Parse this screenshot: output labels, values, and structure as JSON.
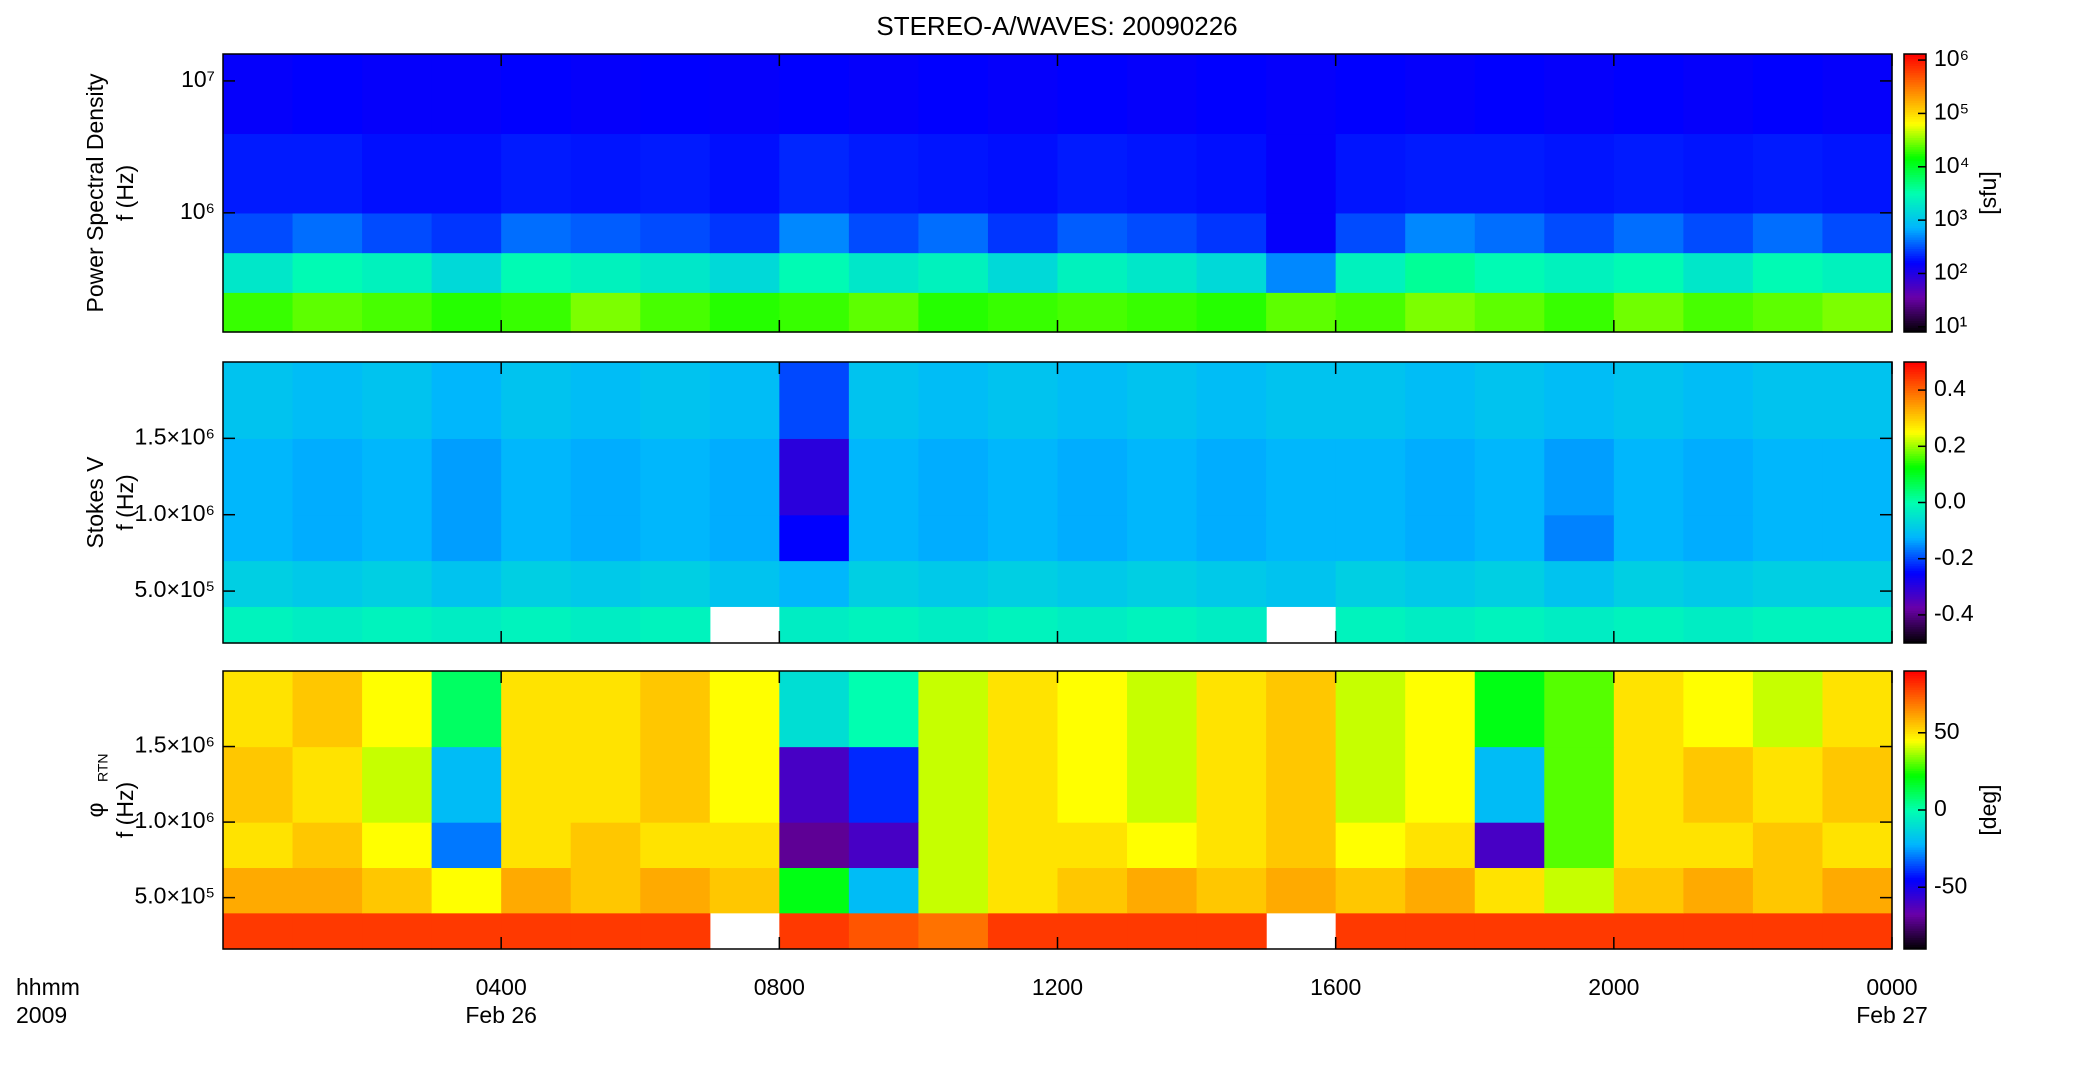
{
  "chart_data": [
    {
      "type": "heatmap",
      "title": "STEREO-A/WAVES: 20090226",
      "ylabel": [
        "Power Spectral Density",
        "f (Hz)"
      ],
      "xlim": [
        0,
        24
      ],
      "ylim": [
        125000,
        16000000
      ],
      "ylog": true,
      "yticks": [
        {
          "value": 1000000,
          "label": "10⁶"
        },
        {
          "value": 10000000,
          "label": "10⁷"
        }
      ],
      "x_bins": [
        0,
        1,
        2,
        3,
        4,
        5,
        6,
        7,
        8,
        9,
        10,
        11,
        12,
        13,
        14,
        15,
        16,
        17,
        18,
        19,
        20,
        21,
        22,
        23,
        24
      ],
      "y_bins": [
        125000,
        250000,
        500000,
        1000000,
        4000000,
        16000000
      ],
      "z": [
        [
          20000,
          25000,
          22000,
          18000,
          20000,
          30000,
          22000,
          18000,
          20000,
          25000,
          18000,
          20000,
          22000,
          20000,
          18000,
          25000,
          22000,
          30000,
          25000,
          20000,
          28000,
          22000,
          25000,
          30000
        ],
        [
          2000,
          3000,
          2500,
          1500,
          3000,
          2500,
          2000,
          1500,
          3000,
          2000,
          2500,
          1500,
          2500,
          2000,
          1500,
          500,
          2500,
          4000,
          3000,
          2500,
          3000,
          2000,
          3000,
          2500
        ],
        [
          300,
          400,
          300,
          250,
          400,
          350,
          300,
          250,
          500,
          300,
          400,
          250,
          350,
          300,
          250,
          150,
          300,
          500,
          400,
          300,
          400,
          300,
          400,
          300
        ],
        [
          200,
          200,
          180,
          180,
          200,
          190,
          200,
          180,
          220,
          200,
          190,
          180,
          200,
          190,
          180,
          150,
          190,
          200,
          200,
          190,
          200,
          190,
          200,
          190
        ],
        [
          150,
          160,
          150,
          150,
          160,
          150,
          160,
          150,
          160,
          150,
          160,
          150,
          160,
          150,
          160,
          150,
          160,
          150,
          160,
          150,
          160,
          150,
          160,
          150
        ]
      ],
      "zlim": [
        8,
        1300000
      ],
      "zlog": true,
      "zlabel": "[sfu]",
      "zticks": [
        {
          "value": 10,
          "label": "10¹"
        },
        {
          "value": 100,
          "label": "10²"
        },
        {
          "value": 1000,
          "label": "10³"
        },
        {
          "value": 10000,
          "label": "10⁴"
        },
        {
          "value": 100000,
          "label": "10⁵"
        },
        {
          "value": 1000000,
          "label": "10⁶"
        }
      ],
      "colormap": [
        "#000000",
        "#6a00a8",
        "#0000ff",
        "#00b4ff",
        "#00ffb0",
        "#00ff00",
        "#ffff00",
        "#ff8000",
        "#ff0000"
      ]
    },
    {
      "type": "heatmap",
      "ylabel": [
        "Stokes V",
        "f (Hz)"
      ],
      "xlim": [
        0,
        24
      ],
      "ylim": [
        160000,
        2000000
      ],
      "yticks": [
        {
          "value": 500000,
          "label": "5.0×10⁵"
        },
        {
          "value": 1000000,
          "label": "1.0×10⁶"
        },
        {
          "value": 1500000,
          "label": "1.5×10⁶"
        }
      ],
      "x_bins": [
        0,
        1,
        2,
        3,
        4,
        5,
        6,
        7,
        8,
        9,
        10,
        11,
        12,
        13,
        14,
        15,
        16,
        17,
        18,
        19,
        20,
        21,
        22,
        23,
        24
      ],
      "y_bins": [
        160000,
        400000,
        700000,
        1000000,
        1500000,
        2000000
      ],
      "z": [
        [
          -0.02,
          -0.03,
          -0.02,
          -0.03,
          -0.02,
          -0.03,
          -0.02,
          null,
          -0.03,
          -0.02,
          -0.03,
          -0.02,
          -0.03,
          -0.02,
          -0.03,
          null,
          -0.02,
          -0.03,
          -0.02,
          -0.03,
          -0.02,
          -0.03,
          -0.02,
          -0.02
        ],
        [
          -0.08,
          -0.09,
          -0.08,
          -0.1,
          -0.08,
          -0.09,
          -0.08,
          -0.1,
          -0.12,
          -0.08,
          -0.09,
          -0.08,
          -0.09,
          -0.08,
          -0.09,
          -0.1,
          -0.08,
          -0.09,
          -0.08,
          -0.1,
          -0.08,
          -0.09,
          -0.08,
          -0.08
        ],
        [
          -0.12,
          -0.13,
          -0.12,
          -0.14,
          -0.12,
          -0.13,
          -0.12,
          -0.13,
          -0.25,
          -0.12,
          -0.13,
          -0.12,
          -0.13,
          -0.12,
          -0.13,
          -0.12,
          -0.12,
          -0.13,
          -0.12,
          -0.16,
          -0.12,
          -0.13,
          -0.12,
          -0.12
        ],
        [
          -0.12,
          -0.13,
          -0.12,
          -0.14,
          -0.12,
          -0.13,
          -0.12,
          -0.13,
          -0.3,
          -0.12,
          -0.13,
          -0.12,
          -0.13,
          -0.12,
          -0.13,
          -0.12,
          -0.12,
          -0.13,
          -0.12,
          -0.14,
          -0.12,
          -0.13,
          -0.12,
          -0.12
        ],
        [
          -0.1,
          -0.11,
          -0.1,
          -0.12,
          -0.1,
          -0.11,
          -0.1,
          -0.11,
          -0.2,
          -0.1,
          -0.11,
          -0.1,
          -0.11,
          -0.1,
          -0.11,
          -0.1,
          -0.1,
          -0.11,
          -0.1,
          -0.11,
          -0.1,
          -0.11,
          -0.1,
          -0.1
        ]
      ],
      "zlim": [
        -0.5,
        0.5
      ],
      "zticks": [
        -0.4,
        -0.2,
        {
          "value": 0,
          "label": "0.0"
        },
        0.2,
        0.4
      ],
      "colormap": [
        "#000000",
        "#6a00a8",
        "#0000ff",
        "#00b4ff",
        "#00ffb0",
        "#00ff00",
        "#ffff00",
        "#ff8000",
        "#ff0000"
      ]
    },
    {
      "type": "heatmap",
      "ylabel": [
        "φ",
        "f (Hz)"
      ],
      "ylabel_subscript": "RTN",
      "xlim": [
        0,
        24
      ],
      "ylim": [
        160000,
        2000000
      ],
      "xticks": [
        {
          "value": 4,
          "label": "0400"
        },
        {
          "value": 8,
          "label": "0800"
        },
        {
          "value": 12,
          "label": "1200"
        },
        {
          "value": 16,
          "label": "1600"
        },
        {
          "value": 20,
          "label": "2000"
        },
        {
          "value": 24,
          "label": "0000"
        }
      ],
      "xtick_dates": [
        {
          "value": 4,
          "label": "Feb 26"
        },
        {
          "value": 24,
          "label": "Feb 27"
        }
      ],
      "xlabel": [
        "hhmm",
        "2009"
      ],
      "yticks": [
        {
          "value": 500000,
          "label": "5.0×10⁵"
        },
        {
          "value": 1000000,
          "label": "1.0×10⁶"
        },
        {
          "value": 1500000,
          "label": "1.5×10⁶"
        }
      ],
      "x_bins": [
        0,
        1,
        2,
        3,
        4,
        5,
        6,
        7,
        8,
        9,
        10,
        11,
        12,
        13,
        14,
        15,
        16,
        17,
        18,
        19,
        20,
        21,
        22,
        23,
        24
      ],
      "y_bins": [
        160000,
        400000,
        700000,
        1000000,
        1500000,
        2000000
      ],
      "z": [
        [
          80,
          80,
          80,
          80,
          80,
          80,
          80,
          null,
          80,
          75,
          70,
          80,
          80,
          80,
          80,
          null,
          80,
          80,
          80,
          80,
          80,
          80,
          80,
          80
        ],
        [
          60,
          60,
          55,
          45,
          60,
          55,
          60,
          55,
          20,
          -20,
          40,
          50,
          55,
          60,
          55,
          60,
          55,
          60,
          50,
          40,
          55,
          60,
          55,
          60
        ],
        [
          50,
          55,
          45,
          -30,
          50,
          55,
          50,
          50,
          -70,
          -60,
          40,
          50,
          50,
          45,
          50,
          55,
          45,
          50,
          -60,
          30,
          50,
          50,
          55,
          50
        ],
        [
          55,
          50,
          40,
          -20,
          50,
          50,
          55,
          45,
          -60,
          -40,
          40,
          50,
          45,
          40,
          50,
          55,
          40,
          45,
          -20,
          30,
          50,
          55,
          50,
          55
        ],
        [
          50,
          55,
          45,
          10,
          50,
          50,
          55,
          45,
          -10,
          0,
          40,
          50,
          45,
          40,
          50,
          55,
          40,
          45,
          20,
          30,
          50,
          45,
          40,
          50
        ]
      ],
      "zlim": [
        -90,
        90
      ],
      "zlabel": "[deg]",
      "zticks": [
        -50,
        0,
        50
      ],
      "colormap": [
        "#000000",
        "#6a00a8",
        "#0000ff",
        "#00b4ff",
        "#00ffb0",
        "#00ff00",
        "#ffff00",
        "#ff8000",
        "#ff0000"
      ]
    }
  ]
}
